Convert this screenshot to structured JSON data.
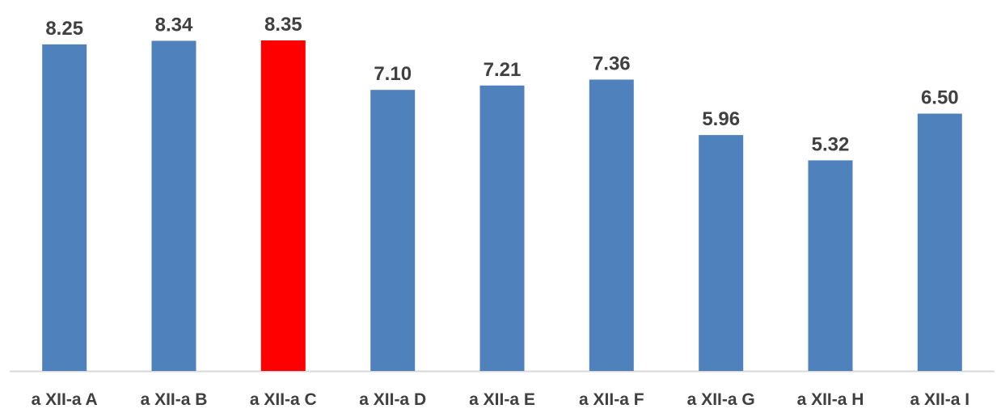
{
  "chart_data": {
    "type": "bar",
    "title": "",
    "xlabel": "",
    "ylabel": "",
    "categories": [
      "a XII-a A",
      "a XII-a B",
      "a XII-a C",
      "a XII-a D",
      "a XII-a E",
      "a XII-a F",
      "a XII-a G",
      "a XII-a H",
      "a XII-a I"
    ],
    "values": [
      8.25,
      8.34,
      8.35,
      7.1,
      7.21,
      7.36,
      5.96,
      5.32,
      6.5
    ],
    "value_labels": [
      "8.25",
      "8.34",
      "8.35",
      "7.10",
      "7.21",
      "7.36",
      "5.96",
      "5.32",
      "6.50"
    ],
    "ylim": [
      0,
      8.35
    ],
    "grid": false,
    "legend": "none",
    "colors": {
      "default_bar": "#4f81bd",
      "highlight_bar": "#ff0000",
      "axis_line": "#d9d9d9",
      "label_text": "#404040"
    },
    "highlight_category": "a XII-a C"
  }
}
